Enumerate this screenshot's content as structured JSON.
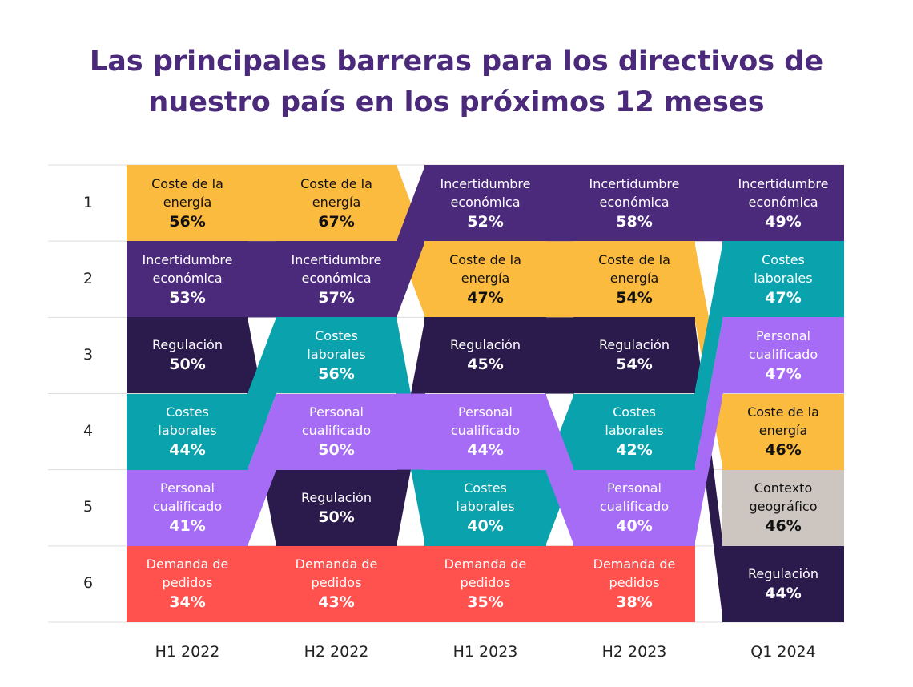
{
  "chart_data": {
    "type": "bump",
    "title": "Las principales barreras para los directivos de nuestro país en los próximos 12 meses",
    "categories": [
      "H1 2022",
      "H2 2022",
      "H1 2023",
      "H2 2023",
      "Q1 2024"
    ],
    "ranks": [
      1,
      2,
      3,
      4,
      5,
      6
    ],
    "series": [
      {
        "name": "Coste de la energía",
        "color": "#fbbb3f",
        "ranks": [
          1,
          1,
          2,
          2,
          4
        ],
        "values": [
          56,
          67,
          47,
          54,
          46
        ],
        "value_labels": [
          "56%",
          "67%",
          "47%",
          "54%",
          "46%"
        ]
      },
      {
        "name": "Incertidumbre económica",
        "color": "#4b2a7c",
        "ranks": [
          2,
          2,
          1,
          1,
          1
        ],
        "values": [
          53,
          57,
          52,
          58,
          49
        ],
        "value_labels": [
          "53%",
          "57%",
          "52%",
          "58%",
          "49%"
        ]
      },
      {
        "name": "Regulación",
        "color": "#2b1a4c",
        "ranks": [
          3,
          5,
          3,
          3,
          6
        ],
        "values": [
          50,
          50,
          45,
          54,
          44
        ],
        "value_labels": [
          "50%",
          "50%",
          "45%",
          "54%",
          "44%"
        ]
      },
      {
        "name": "Costes laborales",
        "color": "#0aa3ad",
        "ranks": [
          4,
          3,
          5,
          4,
          2
        ],
        "values": [
          44,
          56,
          40,
          42,
          47
        ],
        "value_labels": [
          "44%",
          "56%",
          "40%",
          "42%",
          "47%"
        ]
      },
      {
        "name": "Personal cualificado",
        "color": "#a66cf5",
        "ranks": [
          5,
          4,
          4,
          5,
          3
        ],
        "values": [
          41,
          50,
          44,
          40,
          47
        ],
        "value_labels": [
          "41%",
          "50%",
          "44%",
          "40%",
          "47%"
        ]
      },
      {
        "name": "Demanda de pedidos",
        "color": "#ff514d",
        "ranks": [
          6,
          6,
          6,
          6,
          null
        ],
        "values": [
          34,
          43,
          35,
          38,
          null
        ],
        "value_labels": [
          "34%",
          "43%",
          "35%",
          "38%",
          null
        ]
      },
      {
        "name": "Contexto geográfico",
        "color": "#cdc6c0",
        "ranks": [
          null,
          null,
          null,
          null,
          5
        ],
        "values": [
          null,
          null,
          null,
          null,
          46
        ],
        "value_labels": [
          null,
          null,
          null,
          null,
          "46%"
        ]
      }
    ]
  }
}
